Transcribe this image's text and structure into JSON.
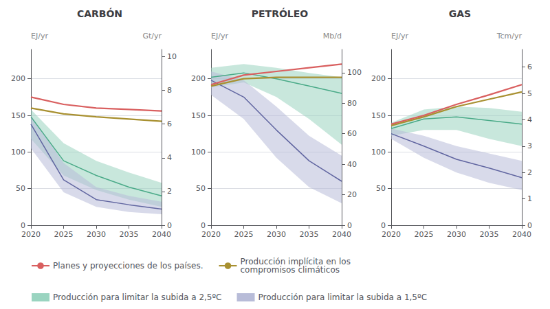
{
  "chart_data": [
    {
      "type": "line",
      "title": "CARBÓN",
      "ylabel": "EJ/yr",
      "y2label": "Gt/yr",
      "x": [
        2020,
        2025,
        2030,
        2035,
        2040
      ],
      "xlim": [
        2020,
        2040
      ],
      "xticks": [
        2020,
        2025,
        2030,
        2035,
        2040
      ],
      "ylim": [
        0,
        240
      ],
      "yticks": [
        0,
        50,
        100,
        150,
        200
      ],
      "y2lim": [
        0,
        10.43
      ],
      "y2ticks": [
        0,
        2,
        4,
        6,
        8,
        10
      ],
      "grid": true,
      "legend": "bottom",
      "series": [
        {
          "name": "Planes y proyecciones de los países.",
          "type": "line",
          "color": "#d95f5f",
          "values": [
            175,
            165,
            160,
            158,
            156
          ]
        },
        {
          "name": "Producción implícita en los\ncompromisos climáticos",
          "type": "line",
          "color": "#a89030",
          "values": [
            160,
            152,
            148,
            145,
            142
          ]
        },
        {
          "name": "Producción para limitar la subida a 2,5ºC",
          "type": "band",
          "color": "#9ad4c0",
          "upper": [
            158,
            112,
            88,
            72,
            58
          ],
          "lower": [
            118,
            68,
            48,
            35,
            25
          ]
        },
        {
          "name": "Producción para limitar la subida a 1,5ºC",
          "type": "band",
          "color": "#b8bcd8",
          "upper": [
            150,
            85,
            52,
            40,
            32
          ],
          "lower": [
            105,
            45,
            25,
            18,
            15
          ]
        },
        {
          "type": "line",
          "color": "#4aaa88",
          "values": [
            148,
            88,
            68,
            52,
            40
          ]
        },
        {
          "type": "line",
          "color": "#6065a0",
          "values": [
            138,
            62,
            35,
            28,
            22
          ]
        }
      ]
    },
    {
      "type": "line",
      "title": "PETRÓLEO",
      "ylabel": "EJ/yr",
      "y2label": "Mb/d",
      "x": [
        2020,
        2025,
        2030,
        2035,
        2040
      ],
      "xlim": [
        2020,
        2040
      ],
      "xticks": [
        2020,
        2025,
        2030,
        2035,
        2040
      ],
      "ylim": [
        0,
        240
      ],
      "yticks": [
        0,
        50,
        100,
        150,
        200
      ],
      "y2lim": [
        0,
        115.2
      ],
      "y2ticks": [
        0,
        20,
        40,
        60,
        80,
        100
      ],
      "grid": true,
      "legend": "bottom",
      "series": [
        {
          "name": "Planes y proyecciones de los países.",
          "type": "line",
          "color": "#d95f5f",
          "values": [
            192,
            205,
            210,
            215,
            220
          ]
        },
        {
          "name": "Producción implícita en los\ncompromisos climáticos",
          "type": "line",
          "color": "#a89030",
          "values": [
            190,
            200,
            202,
            202,
            202
          ]
        },
        {
          "name": "Producción para limitar la subida a 2,5ºC",
          "type": "band",
          "color": "#9ad4c0",
          "upper": [
            215,
            220,
            215,
            208,
            202
          ],
          "lower": [
            188,
            195,
            175,
            145,
            110
          ]
        },
        {
          "name": "Producción para limitar la subida a 1,5ºC",
          "type": "band",
          "color": "#b8bcd8",
          "upper": [
            210,
            198,
            162,
            122,
            95
          ],
          "lower": [
            178,
            145,
            92,
            52,
            30
          ]
        },
        {
          "type": "line",
          "color": "#4aaa88",
          "values": [
            202,
            208,
            200,
            190,
            180
          ]
        },
        {
          "type": "line",
          "color": "#6065a0",
          "values": [
            198,
            175,
            130,
            88,
            60
          ]
        }
      ]
    },
    {
      "type": "line",
      "title": "GAS",
      "ylabel": "EJ/yr",
      "y2label": "Tcm/yr",
      "x": [
        2020,
        2025,
        2030,
        2035,
        2040
      ],
      "xlim": [
        2020,
        2040
      ],
      "xticks": [
        2020,
        2025,
        2030,
        2035,
        2040
      ],
      "ylim": [
        0,
        240
      ],
      "yticks": [
        0,
        50,
        100,
        150,
        200
      ],
      "y2lim": [
        0,
        6.67
      ],
      "y2ticks": [
        0,
        1,
        2,
        3,
        4,
        5,
        6
      ],
      "grid": true,
      "legend": "bottom",
      "series": [
        {
          "name": "Planes y proyecciones de los países.",
          "type": "line",
          "color": "#d95f5f",
          "values": [
            138,
            150,
            165,
            178,
            192
          ]
        },
        {
          "name": "Producción implícita en los\ncompromisos climáticos",
          "type": "line",
          "color": "#a89030",
          "values": [
            136,
            148,
            162,
            172,
            182
          ]
        },
        {
          "name": "Producción para limitar la subida a 2,5ºC",
          "type": "band",
          "color": "#9ad4c0",
          "upper": [
            140,
            158,
            162,
            160,
            155
          ],
          "lower": [
            122,
            130,
            130,
            118,
            108
          ]
        },
        {
          "name": "Producción para limitar la subida a 1,5ºC",
          "type": "band",
          "color": "#b8bcd8",
          "upper": [
            132,
            122,
            108,
            98,
            88
          ],
          "lower": [
            118,
            92,
            72,
            58,
            48
          ]
        },
        {
          "type": "line",
          "color": "#4aaa88",
          "values": [
            132,
            145,
            148,
            143,
            138
          ]
        },
        {
          "type": "line",
          "color": "#6065a0",
          "values": [
            125,
            108,
            90,
            78,
            65
          ]
        }
      ]
    }
  ]
}
